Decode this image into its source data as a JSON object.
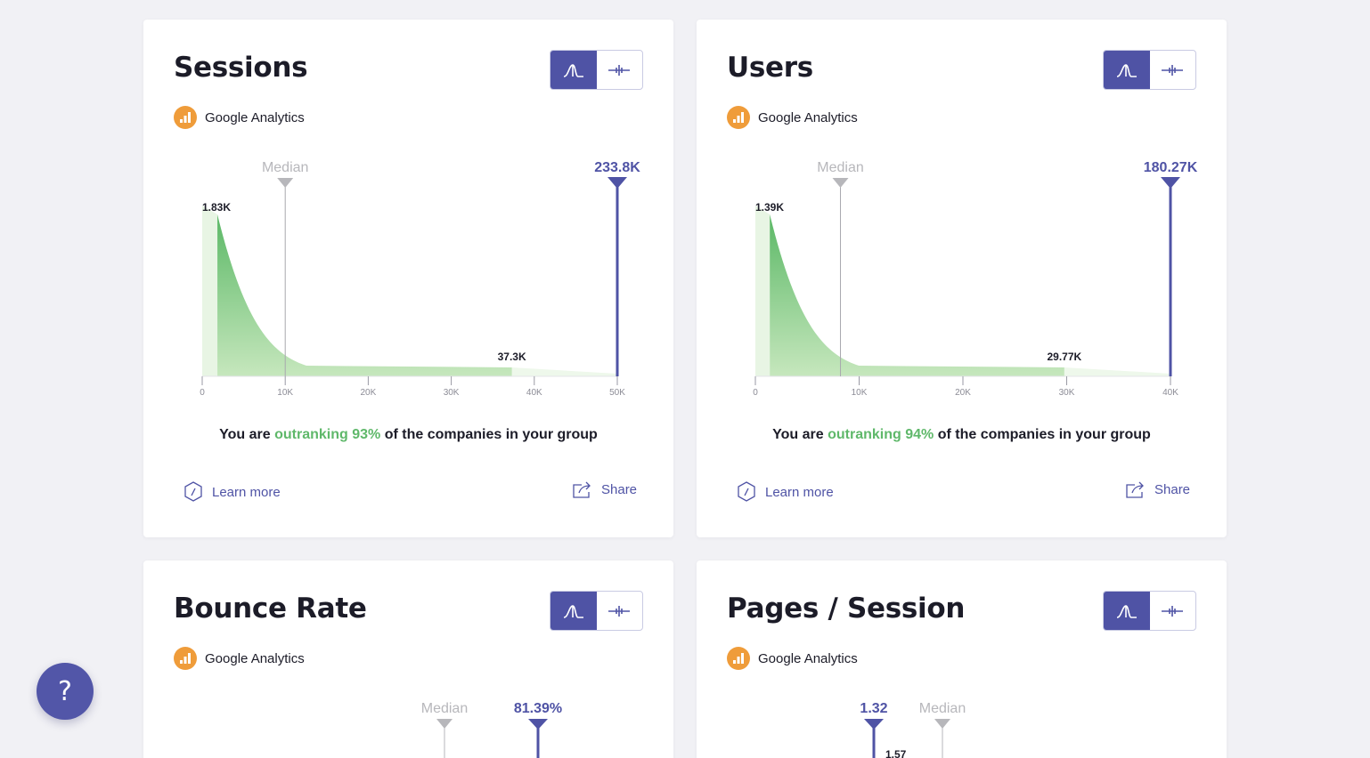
{
  "colors": {
    "accent": "#4f53a5",
    "green": "#5fb86a",
    "median": "#b7b7bb",
    "ga_orange": "#ef9c3a"
  },
  "help": {
    "label": "?"
  },
  "cards": [
    {
      "title": "Sessions",
      "source": "Google Analytics",
      "toggle": {
        "left_icon": "distribution-curve-icon",
        "right_icon": "range-bar-icon",
        "active": "left"
      },
      "summary": {
        "prefix": "You are ",
        "highlight": "outranking 93%",
        "suffix": " of the companies in your group"
      },
      "learn_more": "Learn more",
      "share": "Share"
    },
    {
      "title": "Users",
      "source": "Google Analytics",
      "toggle": {
        "left_icon": "distribution-curve-icon",
        "right_icon": "range-bar-icon",
        "active": "left"
      },
      "summary": {
        "prefix": "You are ",
        "highlight": "outranking 94%",
        "suffix": " of the companies in your group"
      },
      "learn_more": "Learn more",
      "share": "Share"
    },
    {
      "title": "Bounce Rate",
      "source": "Google Analytics",
      "toggle": {
        "left_icon": "distribution-curve-icon",
        "right_icon": "range-bar-icon",
        "active": "left"
      }
    },
    {
      "title": "Pages / Session",
      "source": "Google Analytics",
      "toggle": {
        "left_icon": "distribution-curve-icon",
        "right_icon": "range-bar-icon",
        "active": "left"
      }
    }
  ],
  "chart_data": [
    {
      "type": "area",
      "x_ticks": [
        "0",
        "10K",
        "20K",
        "30K",
        "40K",
        "50K"
      ],
      "x_tick_values": [
        0,
        10000,
        20000,
        30000,
        40000,
        50000
      ],
      "xlim": [
        0,
        50000
      ],
      "median_label": "Median",
      "median_value": 10000,
      "your_value": 50000,
      "your_label": "233.8K",
      "peak_label": "1.83K",
      "tail_label": "37.3K",
      "tail_value": 37300,
      "curve_start": 1830
    },
    {
      "type": "area",
      "x_ticks": [
        "0",
        "10K",
        "20K",
        "30K",
        "40K"
      ],
      "x_tick_values": [
        0,
        10000,
        20000,
        30000,
        40000
      ],
      "xlim": [
        0,
        40000
      ],
      "median_label": "Median",
      "median_value": 8200,
      "your_value": 40000,
      "your_label": "180.27K",
      "peak_label": "1.39K",
      "tail_label": "29.77K",
      "tail_value": 29770,
      "curve_start": 1390
    },
    {
      "type": "area",
      "median_label": "Median",
      "your_label": "81.39%"
    },
    {
      "type": "area",
      "median_label": "Median",
      "your_label": "1.32",
      "peak_label": "1.57"
    }
  ]
}
